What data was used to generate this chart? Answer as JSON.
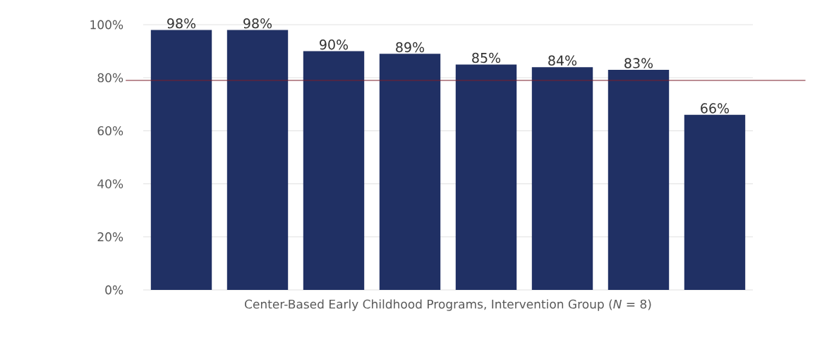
{
  "chart_data": {
    "type": "bar",
    "xlabel": "Center-Based Early Childhood Programs, Intervention Group (*N* = 8)",
    "categories": [
      null,
      null,
      null,
      null,
      null,
      null,
      null,
      null
    ],
    "values": [
      98,
      98,
      90,
      89,
      85,
      84,
      83,
      66
    ],
    "value_labels": [
      "98%",
      "98%",
      "90%",
      "89%",
      "85%",
      "84%",
      "83%",
      "66%"
    ],
    "color": "#203064",
    "ylim": [
      0,
      100
    ],
    "yticks": [
      {
        "value": 0,
        "label": "0%"
      },
      {
        "value": 20,
        "label": "20%"
      },
      {
        "value": 40,
        "label": "40%"
      },
      {
        "value": 60,
        "label": "60%"
      },
      {
        "value": 80,
        "label": "80%"
      },
      {
        "value": 100,
        "label": "100%"
      }
    ],
    "grid": "y",
    "ref_lines": [
      {
        "axis": "y",
        "value": 79,
        "color": "#7a1f2b"
      }
    ]
  }
}
